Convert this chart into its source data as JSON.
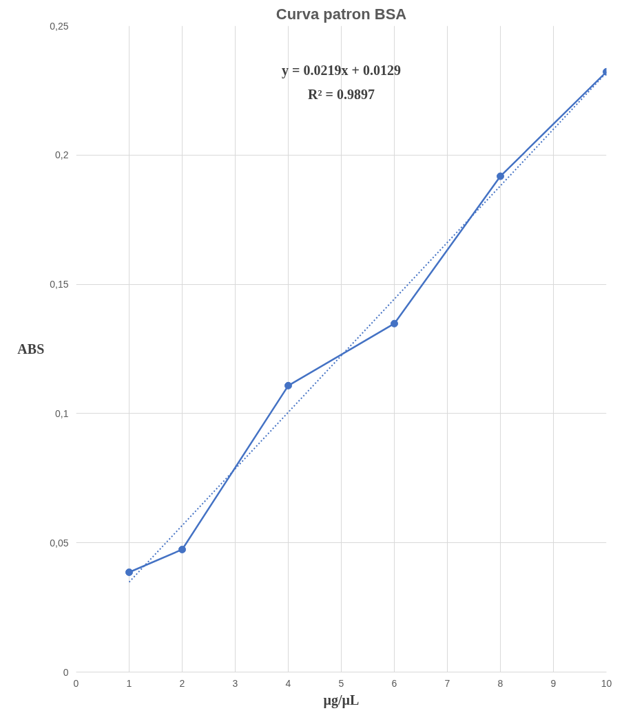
{
  "chart_data": {
    "type": "line",
    "title": "Curva patron BSA",
    "xlabel": "µg/µL",
    "ylabel": "ABS",
    "xlim": [
      0,
      10
    ],
    "xticks": [
      0,
      1,
      2,
      3,
      4,
      5,
      6,
      7,
      8,
      9,
      10
    ],
    "ylim": [
      0,
      0.25
    ],
    "yticks": [
      {
        "value": 0,
        "label": "0"
      },
      {
        "value": 0.05,
        "label": "0,05"
      },
      {
        "value": 0.1,
        "label": "0,1"
      },
      {
        "value": 0.15,
        "label": "0,15"
      },
      {
        "value": 0.2,
        "label": "0,2"
      },
      {
        "value": 0.25,
        "label": "0,25"
      }
    ],
    "grid": true,
    "marker": "circle",
    "line_style": "solid",
    "series": [
      {
        "color": "#4472c4",
        "x": [
          1,
          2,
          4,
          6,
          8,
          10
        ],
        "values": [
          0.0386,
          0.0474,
          0.1108,
          0.1348,
          0.1918,
          0.2322
        ]
      },
      {
        "type": "line",
        "color": "#4472c4",
        "marker": "none",
        "line_style": "dotted",
        "x": [
          1,
          10
        ],
        "values": [
          0.0348,
          0.2319
        ]
      }
    ],
    "annotations": [
      "y = 0.0219x + 0.0129",
      "R² = 0.9897"
    ]
  }
}
